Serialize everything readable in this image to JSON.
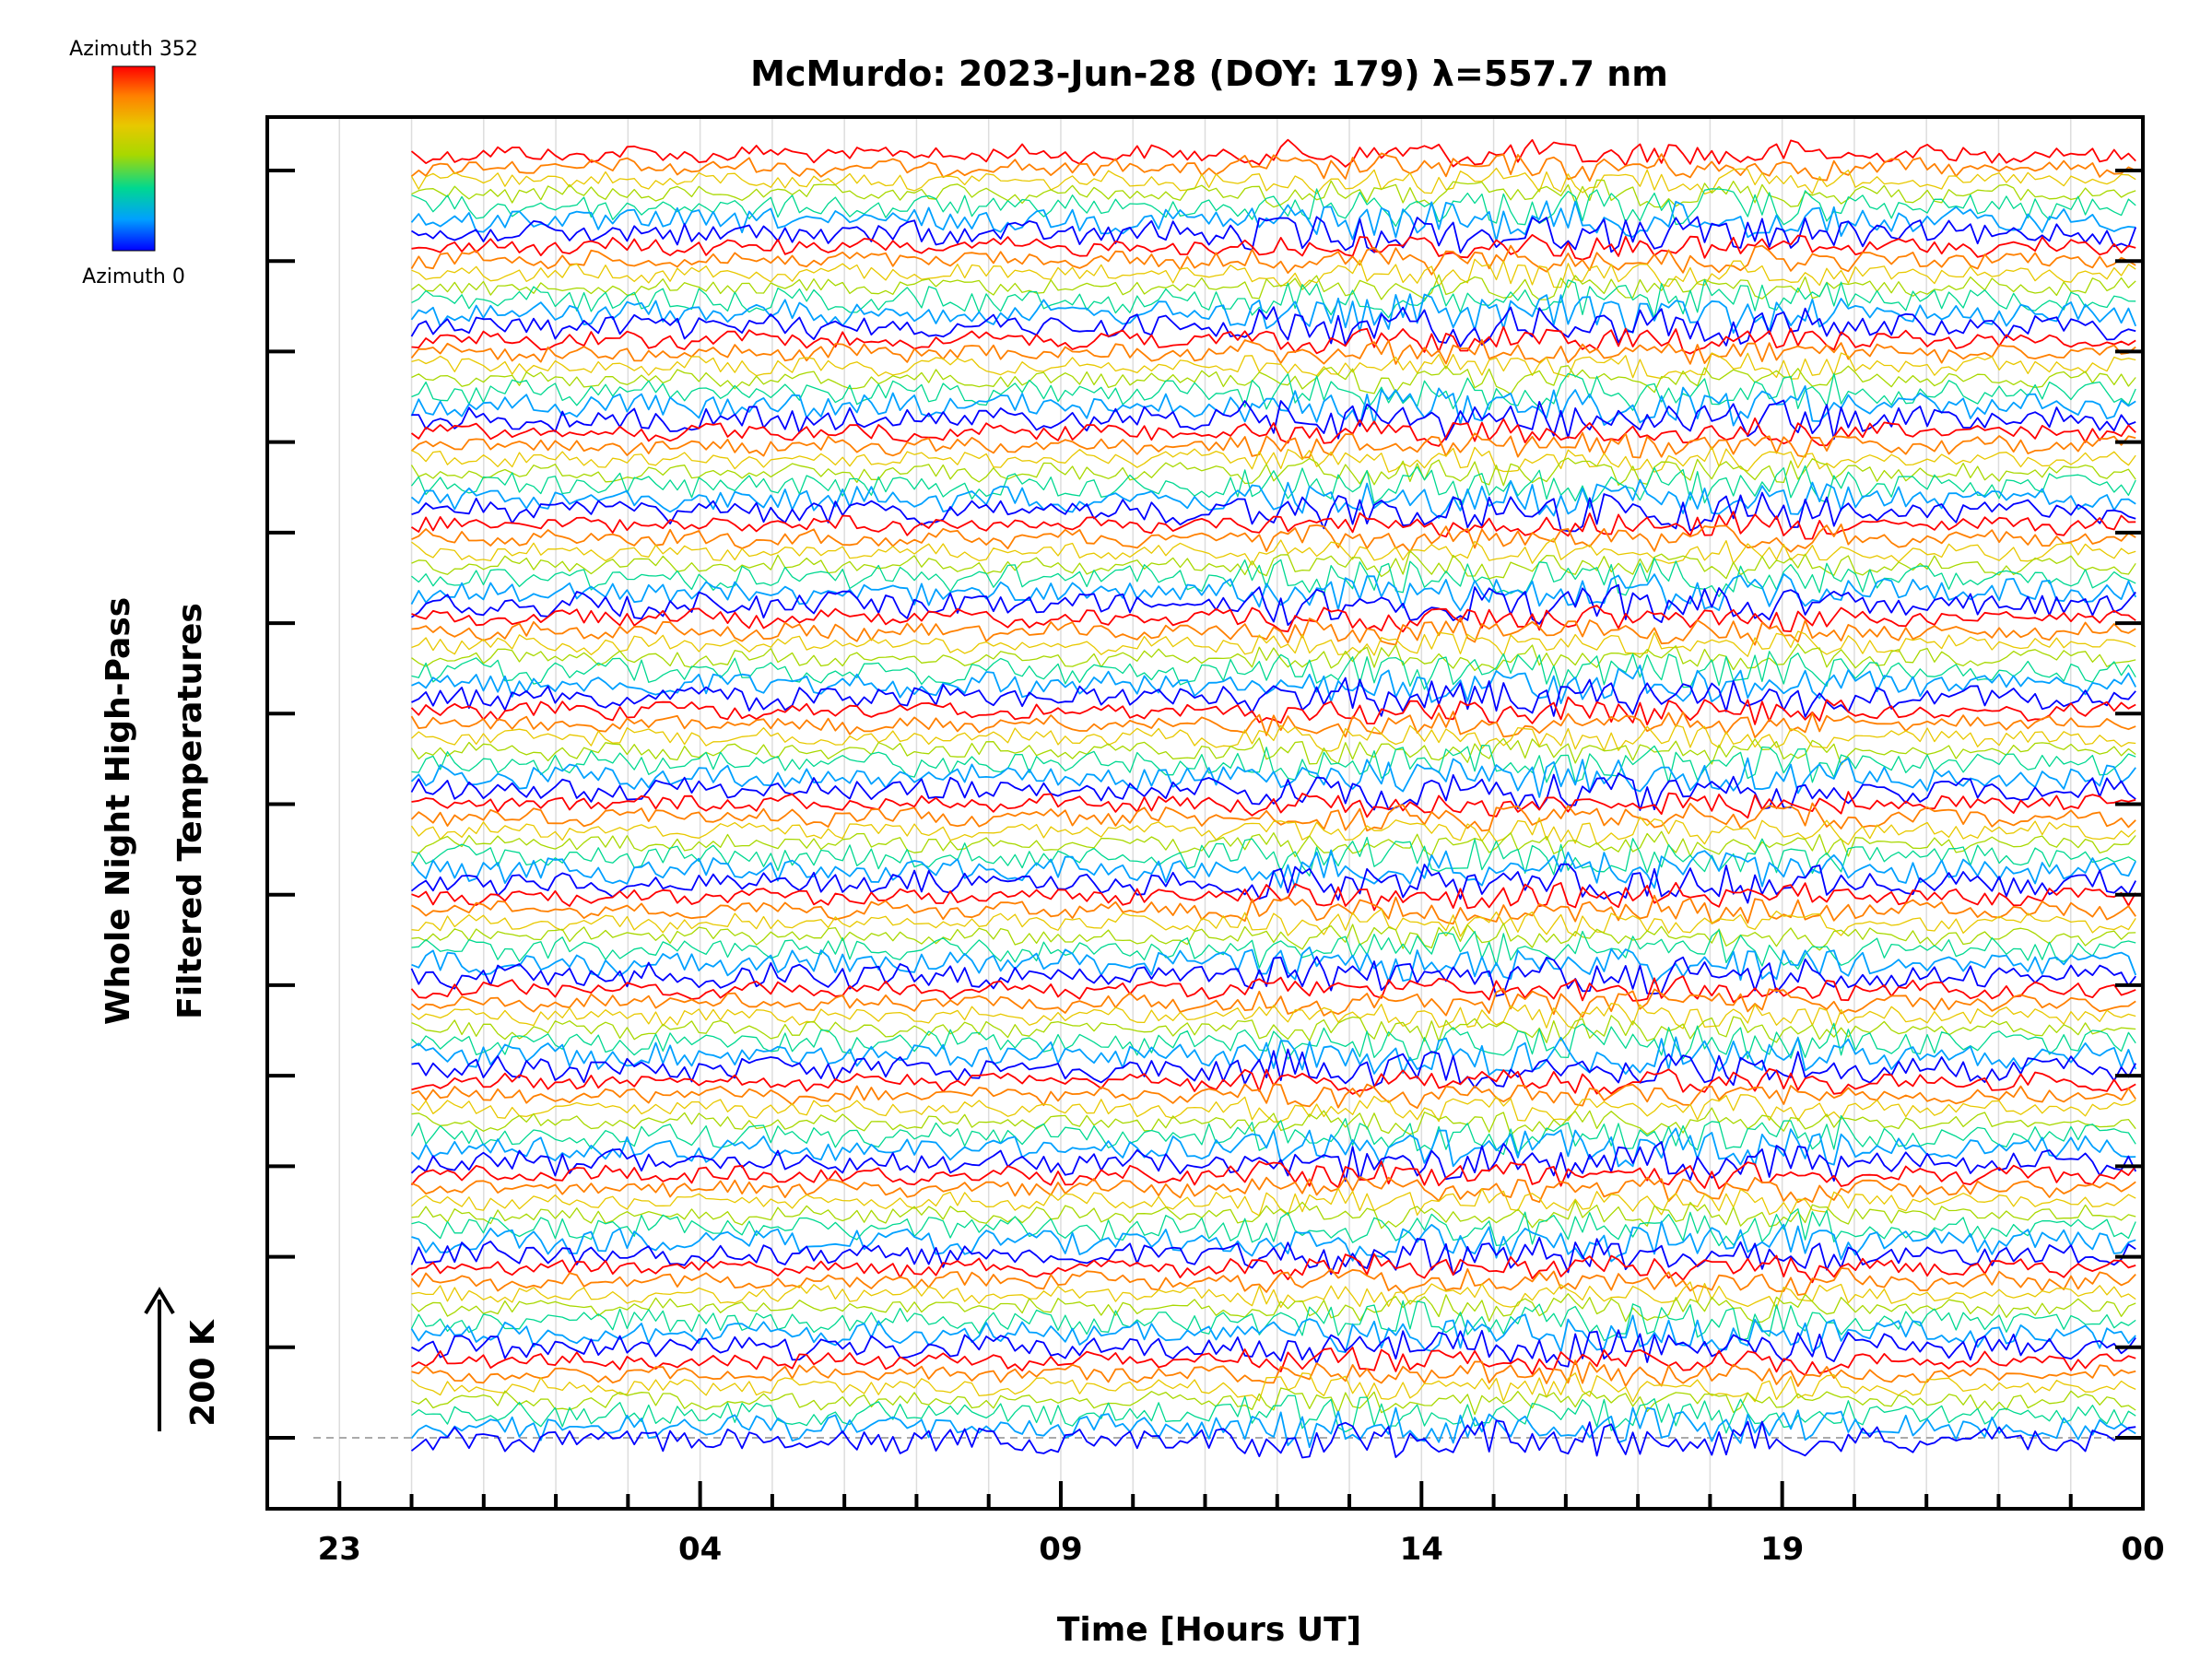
{
  "chart_data": {
    "type": "line",
    "title": "McMurdo: 2023-Jun-28 (DOY: 179) λ=557.7 nm",
    "xlabel": "Time [Hours UT]",
    "ylabel_line1": "Whole Night High-Pass",
    "ylabel_line2": "Filtered Temperatures",
    "scale_bar": {
      "label": "200 K",
      "kelvin": 200
    },
    "colorbar": {
      "top_label": "Azimuth 352",
      "bottom_label": "Azimuth 0",
      "azimuth_min": 0,
      "azimuth_max": 352,
      "colors": [
        "#0000ff",
        "#00a0ff",
        "#00d890",
        "#a8d800",
        "#e8c800",
        "#ff8000",
        "#ff0000"
      ]
    },
    "x_axis": {
      "range_hours": [
        22.0,
        48.0
      ],
      "major_ticks": [
        {
          "hour": 23,
          "label": "23"
        },
        {
          "hour": 28,
          "label": "04"
        },
        {
          "hour": 33,
          "label": "09"
        },
        {
          "hour": 38,
          "label": "14"
        },
        {
          "hour": 43,
          "label": "19"
        },
        {
          "hour": 48,
          "label": "00"
        }
      ],
      "minor_tick_hours": [
        24,
        25,
        26,
        27,
        29,
        30,
        31,
        32,
        34,
        35,
        36,
        37,
        39,
        40,
        41,
        42,
        44,
        45,
        46,
        47
      ]
    },
    "data_start_hour": 24.0,
    "data_end_hour": 47.9,
    "series_groups": 14,
    "traces_per_group": 7,
    "group_azimuths": [
      0,
      50,
      100,
      150,
      200,
      250,
      300,
      352
    ]
  }
}
